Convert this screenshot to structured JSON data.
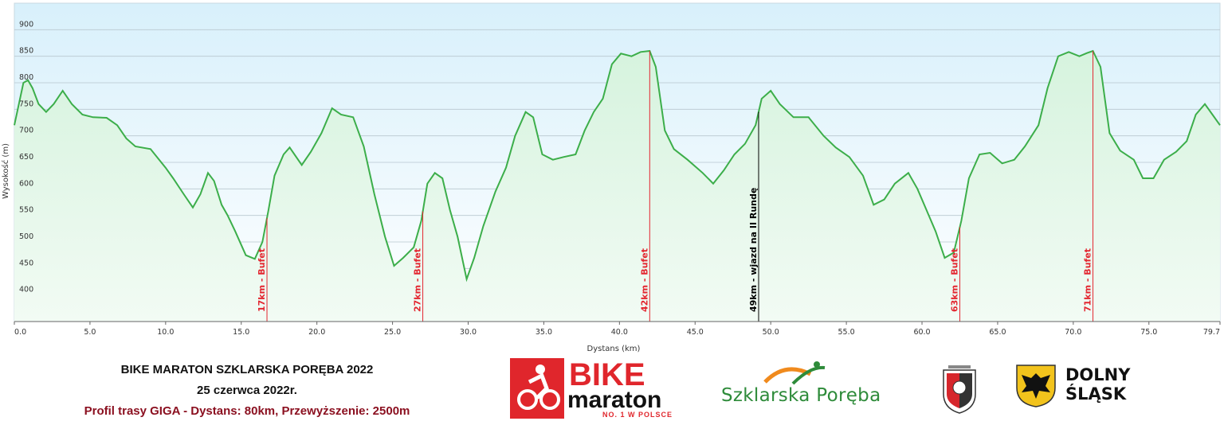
{
  "chart_data": {
    "type": "area",
    "xlabel": "Dystans (km)",
    "ylabel": "Wysokość (m)",
    "xlim": [
      0,
      79.7
    ],
    "ylim": [
      350,
      950
    ],
    "x_ticks": [
      "0.0",
      "5.0",
      "10.0",
      "15.0",
      "20.0",
      "25.0",
      "30.0",
      "35.0",
      "40.0",
      "45.0",
      "50.0",
      "55.0",
      "60.0",
      "65.0",
      "70.0",
      "75.0",
      "79.7"
    ],
    "y_ticks": [
      "400",
      "450",
      "500",
      "550",
      "600",
      "650",
      "700",
      "750",
      "800",
      "850",
      "900"
    ],
    "grid": true,
    "series": [
      {
        "points": [
          [
            0,
            720
          ],
          [
            0.3,
            760
          ],
          [
            0.6,
            800
          ],
          [
            0.9,
            805
          ],
          [
            1.2,
            790
          ],
          [
            1.6,
            760
          ],
          [
            2.1,
            745
          ],
          [
            2.6,
            760
          ],
          [
            3.2,
            785
          ],
          [
            3.8,
            760
          ],
          [
            4.5,
            740
          ],
          [
            5.2,
            735
          ],
          [
            6.1,
            734
          ],
          [
            6.8,
            720
          ],
          [
            7.4,
            695
          ],
          [
            8,
            680
          ],
          [
            9,
            675
          ],
          [
            10,
            640
          ],
          [
            10.5,
            620
          ],
          [
            11.2,
            590
          ],
          [
            11.8,
            565
          ],
          [
            12.3,
            590
          ],
          [
            12.8,
            630
          ],
          [
            13.2,
            615
          ],
          [
            13.7,
            570
          ],
          [
            14.1,
            550
          ],
          [
            14.6,
            520
          ],
          [
            15.3,
            475
          ],
          [
            15.9,
            468
          ],
          [
            16.4,
            500
          ],
          [
            16.8,
            560
          ],
          [
            17.2,
            625
          ],
          [
            17.8,
            665
          ],
          [
            18.2,
            678
          ],
          [
            19,
            645
          ],
          [
            19.6,
            670
          ],
          [
            20.3,
            705
          ],
          [
            21.0,
            752
          ],
          [
            21.6,
            740
          ],
          [
            22.4,
            735
          ],
          [
            23.1,
            680
          ],
          [
            23.8,
            590
          ],
          [
            24.5,
            510
          ],
          [
            25.1,
            455
          ],
          [
            25.7,
            470
          ],
          [
            26.4,
            490
          ],
          [
            26.9,
            540
          ],
          [
            27.3,
            610
          ],
          [
            27.8,
            630
          ],
          [
            28.3,
            620
          ],
          [
            28.8,
            560
          ],
          [
            29.3,
            510
          ],
          [
            29.9,
            430
          ],
          [
            30.4,
            470
          ],
          [
            31.0,
            530
          ],
          [
            31.8,
            595
          ],
          [
            32.5,
            640
          ],
          [
            33.1,
            700
          ],
          [
            33.8,
            745
          ],
          [
            34.3,
            735
          ],
          [
            34.9,
            665
          ],
          [
            35.6,
            655
          ],
          [
            36.3,
            660
          ],
          [
            37.1,
            665
          ],
          [
            37.7,
            710
          ],
          [
            38.3,
            745
          ],
          [
            38.9,
            770
          ],
          [
            39.5,
            835
          ],
          [
            40.1,
            855
          ],
          [
            40.8,
            850
          ],
          [
            41.4,
            858
          ],
          [
            42.0,
            860
          ],
          [
            42.4,
            830
          ],
          [
            43.0,
            710
          ],
          [
            43.6,
            675
          ],
          [
            44.5,
            655
          ],
          [
            45.5,
            630
          ],
          [
            46.2,
            610
          ],
          [
            46.9,
            635
          ],
          [
            47.6,
            665
          ],
          [
            48.3,
            685
          ],
          [
            49.0,
            720
          ],
          [
            49.4,
            770
          ],
          [
            50.0,
            785
          ],
          [
            50.6,
            760
          ],
          [
            51.5,
            735
          ],
          [
            52.5,
            735
          ],
          [
            53.5,
            700
          ],
          [
            54.3,
            678
          ],
          [
            55.2,
            660
          ],
          [
            56.1,
            625
          ],
          [
            56.8,
            570
          ],
          [
            57.5,
            580
          ],
          [
            58.2,
            610
          ],
          [
            59.1,
            630
          ],
          [
            59.7,
            600
          ],
          [
            60.3,
            560
          ],
          [
            60.9,
            520
          ],
          [
            61.5,
            470
          ],
          [
            62.1,
            480
          ],
          [
            62.6,
            540
          ],
          [
            63.1,
            620
          ],
          [
            63.8,
            665
          ],
          [
            64.5,
            668
          ],
          [
            65.3,
            648
          ],
          [
            66.1,
            655
          ],
          [
            66.8,
            680
          ],
          [
            67.7,
            720
          ],
          [
            68.3,
            790
          ],
          [
            69.0,
            850
          ],
          [
            69.7,
            858
          ],
          [
            70.4,
            850
          ],
          [
            70.9,
            856
          ],
          [
            71.3,
            860
          ],
          [
            71.8,
            830
          ],
          [
            72.4,
            705
          ],
          [
            73.1,
            672
          ],
          [
            74.0,
            655
          ],
          [
            74.6,
            620
          ],
          [
            75.3,
            620
          ],
          [
            76.0,
            655
          ],
          [
            76.8,
            670
          ],
          [
            77.5,
            690
          ],
          [
            78.1,
            740
          ],
          [
            78.7,
            760
          ],
          [
            79.2,
            740
          ],
          [
            79.7,
            720
          ]
        ]
      }
    ],
    "annotations": [
      {
        "km": 16.7,
        "label": "17km - Bufet",
        "color": "#e32630"
      },
      {
        "km": 27.0,
        "label": "27km - Bufet",
        "color": "#e32630"
      },
      {
        "km": 42.0,
        "label": "42km - Bufet",
        "color": "#e32630"
      },
      {
        "km": 49.2,
        "label": "49km - wjazd na II Rundę",
        "color": "#000000"
      },
      {
        "km": 62.5,
        "label": "63km - Bufet",
        "color": "#e32630"
      },
      {
        "km": 71.3,
        "label": "71km - Bufet",
        "color": "#e32630"
      }
    ],
    "line_color": "#3cae4a"
  },
  "caption": {
    "title": "BIKE MARATON SZKLARSKA PORĘBA 2022",
    "date": "25 czerwca 2022r.",
    "profile": "Profil trasy GIGA - Dystans: 80km, Przewyższenie: 2500m"
  },
  "logos": {
    "bike_top": "BIKE",
    "bike_bottom": "maraton",
    "bike_tag": "NO. 1 W POLSCE",
    "szklarska": "Szklarska Poręba",
    "dolny_1": "DOLNY",
    "dolny_2": "ŚLĄSK"
  }
}
